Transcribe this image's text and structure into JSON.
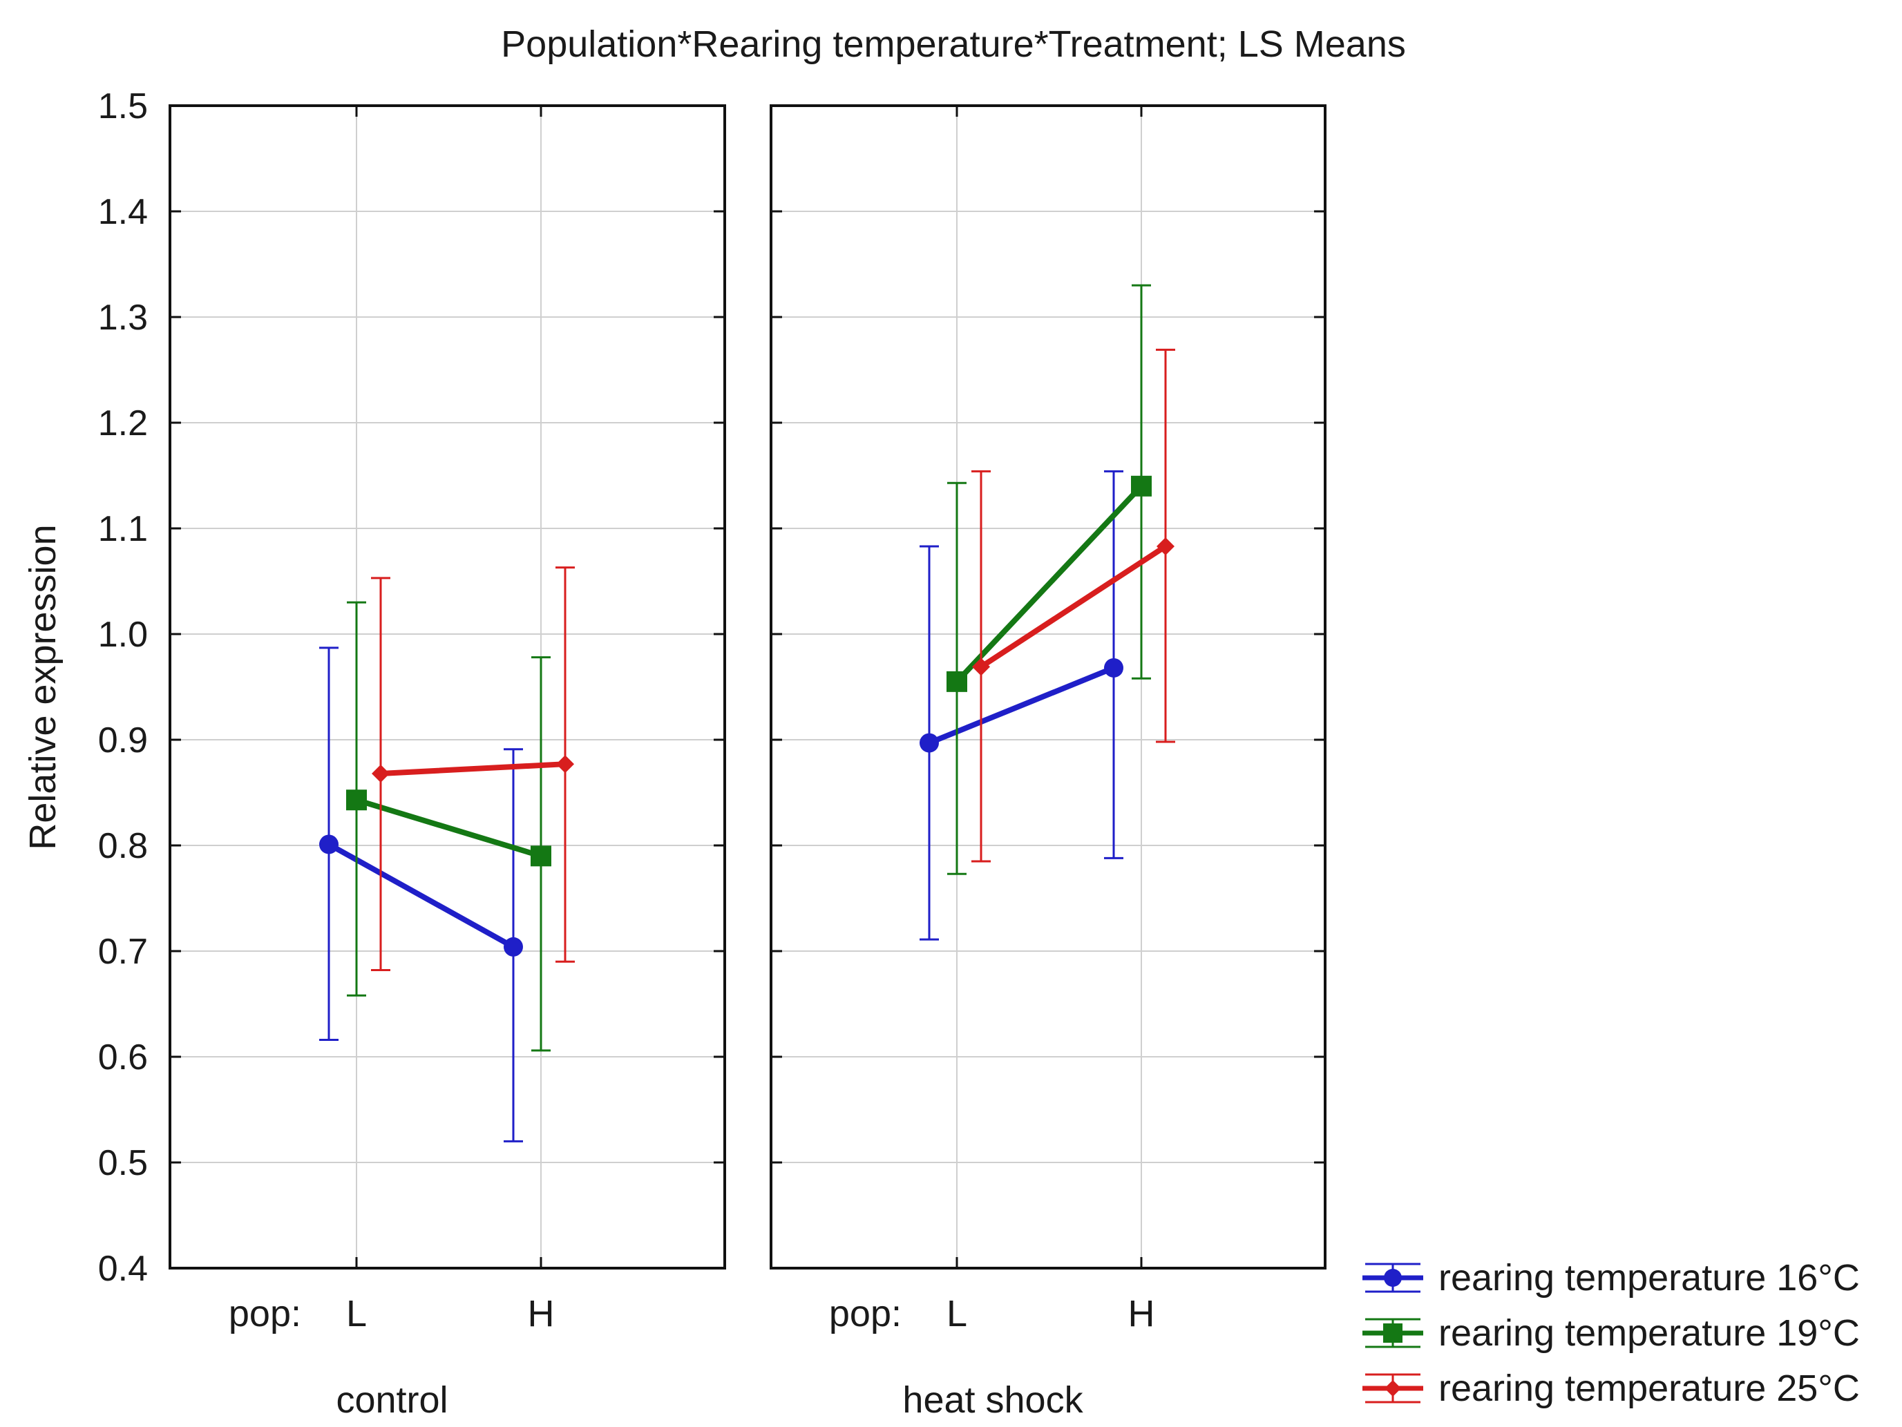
{
  "chart_data": {
    "type": "line",
    "title": "Population*Rearing temperature*Treatment; LS Means",
    "ylabel": "Relative expression",
    "ylim": [
      0.4,
      1.5
    ],
    "yticks": [
      0.4,
      0.5,
      0.6,
      0.7,
      0.8,
      0.9,
      1.0,
      1.1,
      1.2,
      1.3,
      1.4,
      1.5
    ],
    "ytick_labels": [
      "0.4",
      "0.5",
      "0.6",
      "0.7",
      "0.8",
      "0.9",
      "1.0",
      "1.1",
      "1.2",
      "1.3",
      "1.4",
      "1.5"
    ],
    "x_prefix": "pop:",
    "categories": [
      "L",
      "H"
    ],
    "grid": true,
    "legend_position": "bottom-right",
    "panels": [
      {
        "name": "control",
        "series": [
          {
            "name": "rearing temperature 16°C",
            "color": "#1f1fc8",
            "marker": "circle",
            "values": [
              0.801,
              0.704
            ],
            "lower": [
              0.616,
              0.52
            ],
            "upper": [
              0.987,
              0.891
            ]
          },
          {
            "name": "rearing temperature 19°C",
            "color": "#147814",
            "marker": "square",
            "values": [
              0.843,
              0.79
            ],
            "lower": [
              0.658,
              0.606
            ],
            "upper": [
              1.03,
              0.978
            ]
          },
          {
            "name": "rearing temperature 25°C",
            "color": "#d81e1e",
            "marker": "diamond",
            "values": [
              0.868,
              0.877
            ],
            "lower": [
              0.682,
              0.69
            ],
            "upper": [
              1.053,
              1.063
            ]
          }
        ]
      },
      {
        "name": "heat shock",
        "series": [
          {
            "name": "rearing temperature 16°C",
            "color": "#1f1fc8",
            "marker": "circle",
            "values": [
              0.897,
              0.968
            ],
            "lower": [
              0.711,
              0.788
            ],
            "upper": [
              1.083,
              1.154
            ]
          },
          {
            "name": "rearing temperature 19°C",
            "color": "#147814",
            "marker": "square",
            "values": [
              0.955,
              1.14
            ],
            "lower": [
              0.773,
              0.958
            ],
            "upper": [
              1.143,
              1.33
            ]
          },
          {
            "name": "rearing temperature 25°C",
            "color": "#d81e1e",
            "marker": "diamond",
            "values": [
              0.969,
              1.083
            ],
            "lower": [
              0.785,
              0.898
            ],
            "upper": [
              1.154,
              1.269
            ]
          }
        ]
      }
    ],
    "legend": [
      {
        "label": "rearing temperature 16°C",
        "color": "#1f1fc8",
        "marker": "circle"
      },
      {
        "label": "rearing temperature 19°C",
        "color": "#147814",
        "marker": "square"
      },
      {
        "label": "rearing temperature 25°C",
        "color": "#d81e1e",
        "marker": "diamond"
      }
    ]
  }
}
